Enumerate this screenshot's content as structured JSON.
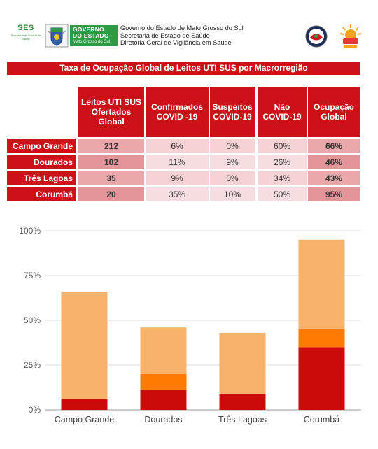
{
  "header": {
    "ses_mark": "SES",
    "ses_sub": "Secretaria de Estado de Saúde",
    "gov_title_1": "GOVERNO",
    "gov_title_2": "DO ESTADO",
    "gov_sub": "Mato Grosso do Sul",
    "lines": [
      "Governo do Estado de Mato Grosso do Sul",
      "Secretaria de Estado de Saúde",
      "Diretoria Geral de Vigilância em Saúde"
    ],
    "colors": {
      "ses_green": "#2e8b3a",
      "gov_green": "#2e9a44",
      "accent_red": "#cc1119"
    }
  },
  "table": {
    "title": "Taxa de Ocupação Global de Leitos UTI SUS por Macrorregião",
    "columns": [
      "Leitos UTI SUS Ofertados Global",
      "Confirmados COVID -19",
      "Suspeitos COVID-19",
      "Não COVID-19",
      "Ocupação Global"
    ],
    "rows": [
      {
        "region": "Campo Grande",
        "values": [
          "212",
          "6%",
          "0%",
          "60%",
          "66%"
        ]
      },
      {
        "region": "Dourados",
        "values": [
          "102",
          "11%",
          "9%",
          "26%",
          "46%"
        ]
      },
      {
        "region": "Três Lagoas",
        "values": [
          "35",
          "9%",
          "0%",
          "34%",
          "43%"
        ]
      },
      {
        "region": "Corumbá",
        "values": [
          "20",
          "35%",
          "10%",
          "50%",
          "95%"
        ]
      }
    ]
  },
  "chart_data": {
    "type": "bar",
    "stacked": true,
    "categories": [
      "Campo Grande",
      "Dourados",
      "Três Lagoas",
      "Corumbá"
    ],
    "series": [
      {
        "values": [
          6,
          11,
          9,
          35
        ],
        "color": "#cc0a0a"
      },
      {
        "values": [
          0,
          9,
          0,
          10
        ],
        "color": "#ff7a00"
      },
      {
        "values": [
          60,
          26,
          34,
          50
        ],
        "color": "#f6b26b"
      }
    ],
    "yticks": [
      "0%",
      "25%",
      "50%",
      "75%",
      "100%"
    ],
    "ylim": [
      0,
      100
    ],
    "grid": true,
    "legend": "none"
  }
}
